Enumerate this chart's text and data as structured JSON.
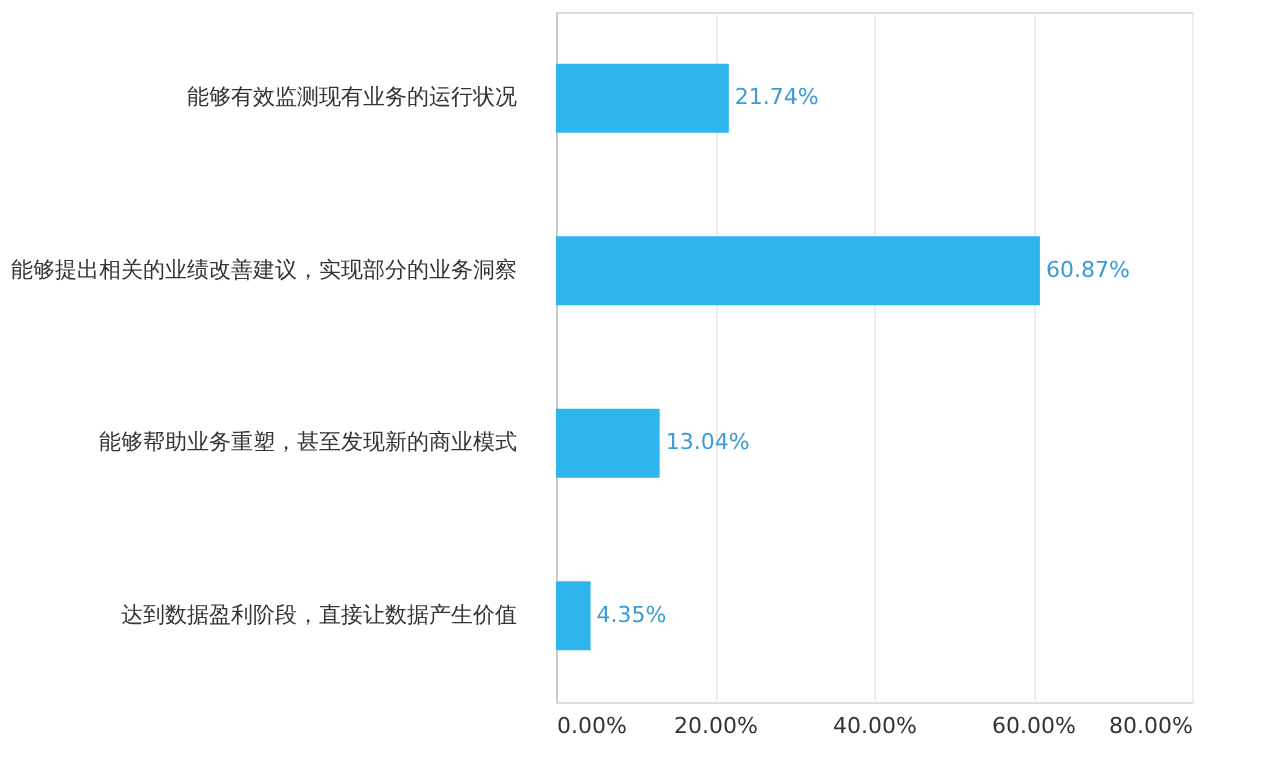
{
  "chart_data": {
    "type": "bar",
    "orientation": "horizontal",
    "categories": [
      "能够有效监测现有业务的运行状况",
      "能够提出相关的业绩改善建议，实现部分的业务洞察",
      "能够帮助业务重塑，甚至发现新的商业模式",
      "达到数据盈利阶段，直接让数据产生价值"
    ],
    "values": [
      21.74,
      60.87,
      13.04,
      4.35
    ],
    "value_labels": [
      "21.74%",
      "60.87%",
      "13.04%",
      "4.35%"
    ],
    "color": "#2eb5ee",
    "xlim": [
      0,
      80
    ],
    "xticks": [
      {
        "value": 0,
        "label": "0.00%"
      },
      {
        "value": 20,
        "label": "20.00%"
      },
      {
        "value": 40,
        "label": "40.00%"
      },
      {
        "value": 60,
        "label": "60.00%"
      },
      {
        "value": 80,
        "label": "80.00%"
      }
    ],
    "grid": "x"
  }
}
